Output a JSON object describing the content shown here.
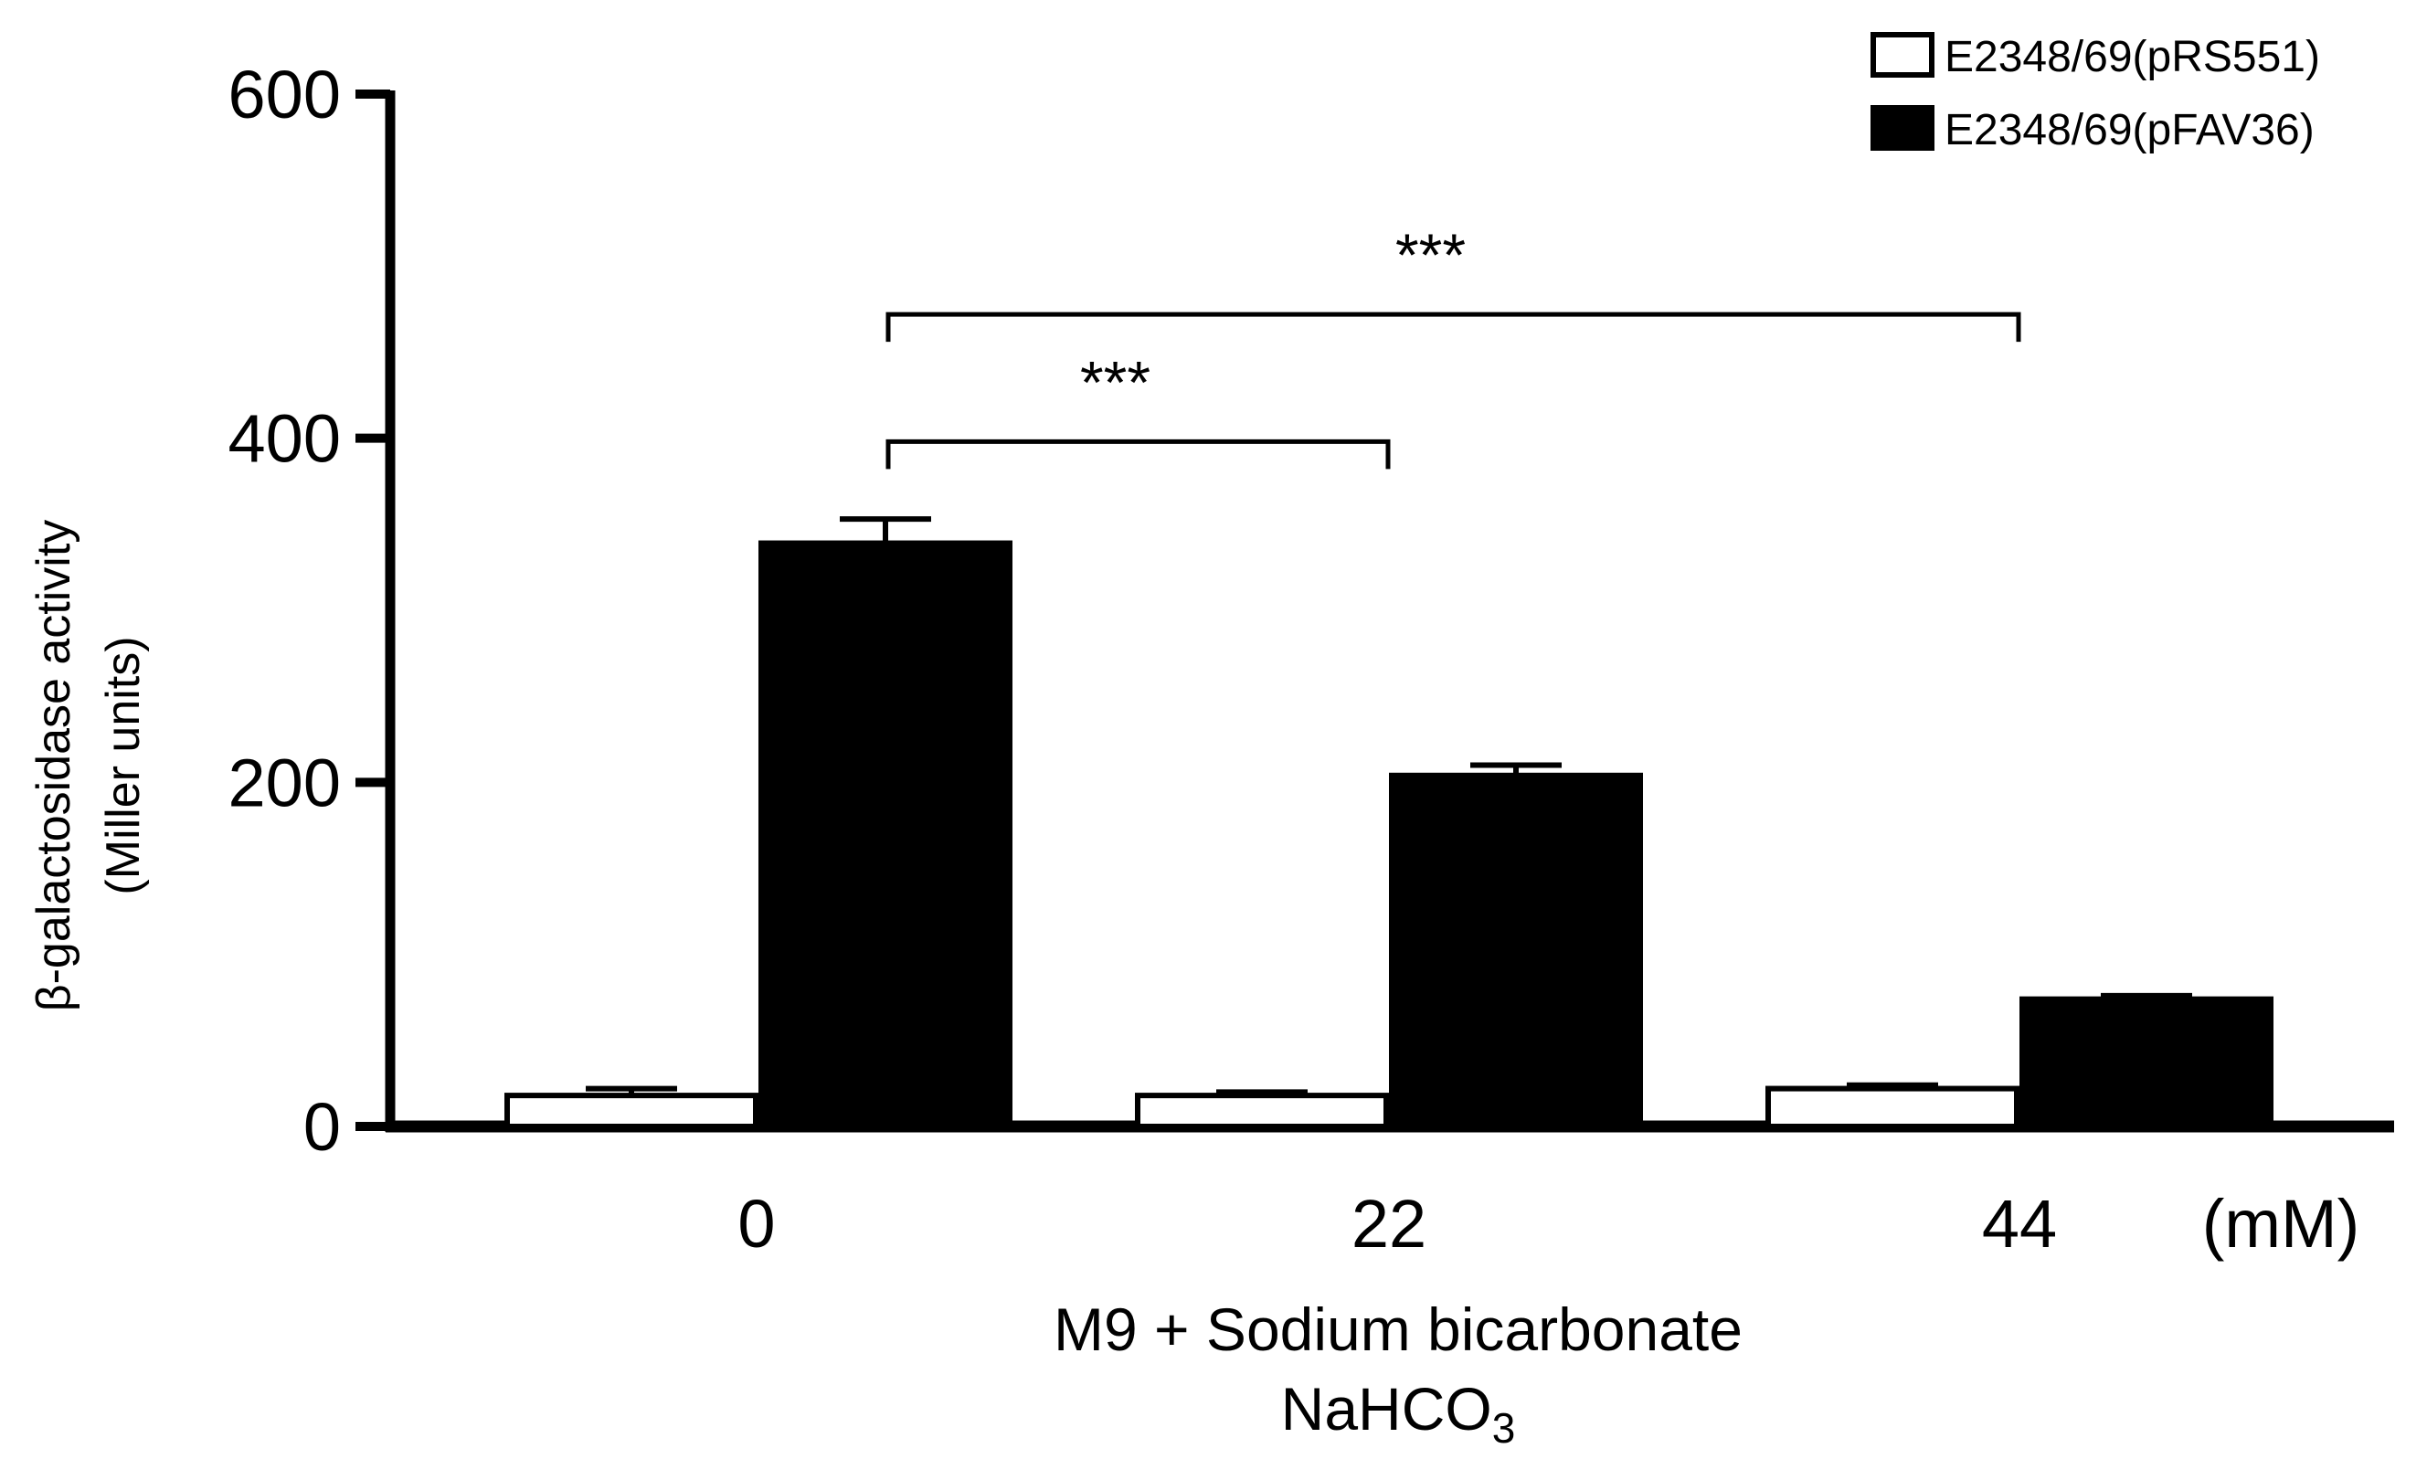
{
  "chart_data": {
    "type": "bar",
    "categories": [
      "0",
      "22",
      "44"
    ],
    "x_unit": "(mM)",
    "series": [
      {
        "name": "E2348/69(pRS551)",
        "values": [
          18,
          18,
          22
        ],
        "errors": [
          4,
          2,
          2
        ],
        "fill": "#ffffff"
      },
      {
        "name": "E2348/69(pFAV36)",
        "values": [
          339,
          204,
          74
        ],
        "errors": [
          14,
          6,
          2
        ],
        "fill": "#000000"
      }
    ],
    "xlabel_line1": "M9 + Sodium bicarbonate",
    "xlabel_line2_main": "NaHCO",
    "xlabel_line2_sub": "3",
    "ylabel_line1": "β-galactosidase activity",
    "ylabel_line2": "(Miller units)",
    "ylim": [
      0,
      600
    ],
    "yticks": [
      0,
      200,
      400,
      600
    ],
    "legend_position": "top-right",
    "significance": [
      {
        "from_category": 0,
        "to_category": 1,
        "label": "***",
        "y": 398
      },
      {
        "from_category": 0,
        "to_category": 2,
        "label": "***",
        "y": 472
      }
    ]
  },
  "colors": {
    "axis": "#000000",
    "background": "#ffffff"
  }
}
